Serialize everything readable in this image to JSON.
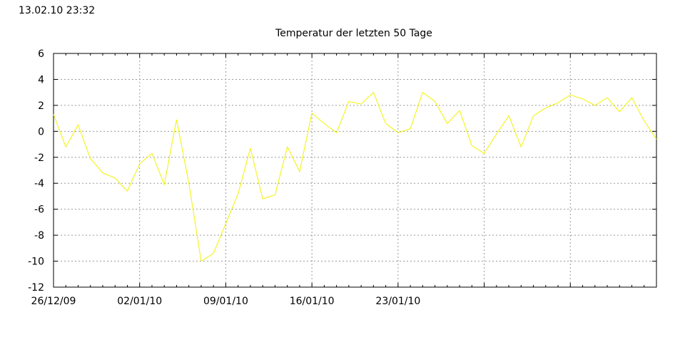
{
  "timestamp": "13.02.10 23:32",
  "chart_data": {
    "type": "line",
    "title": "Temperatur der letzten 50 Tage",
    "xlabel": "",
    "ylabel": "",
    "ylim": [
      -12,
      6
    ],
    "yticks": [
      6,
      4,
      2,
      0,
      -2,
      -4,
      -6,
      -8,
      -10,
      -12
    ],
    "x_start": "2009-12-26",
    "x_tick_labels": [
      {
        "day": 0,
        "label": "26/12/09"
      },
      {
        "day": 7,
        "label": "02/01/10"
      },
      {
        "day": 14,
        "label": "09/01/10"
      },
      {
        "day": 21,
        "label": "16/01/10"
      },
      {
        "day": 28,
        "label": "23/01/10"
      },
      {
        "day": 35,
        "label": ""
      },
      {
        "day": 42,
        "label": ""
      },
      {
        "day": 49,
        "label": ""
      }
    ],
    "grid": true,
    "line_color": "#f2f200",
    "series": [
      {
        "values": [
          1.3,
          -1.2,
          0.5,
          -2.1,
          -3.2,
          -3.6,
          -4.6,
          -2.5,
          -1.7,
          -4.1,
          0.9,
          -4.0,
          -10.0,
          -9.4,
          -7.1,
          -4.8,
          -1.3,
          -5.2,
          -4.9,
          -1.2,
          -3.1,
          1.4,
          0.6,
          -0.1,
          2.3,
          2.1,
          3.0,
          0.6,
          -0.1,
          0.2,
          3.0,
          2.3,
          0.6,
          1.6,
          -1.1,
          -1.7,
          -0.2,
          1.2,
          -1.2,
          1.2,
          1.8,
          2.2,
          2.8,
          2.5,
          2.0,
          2.6,
          1.5,
          2.6,
          0.8,
          -0.6
        ]
      }
    ]
  }
}
